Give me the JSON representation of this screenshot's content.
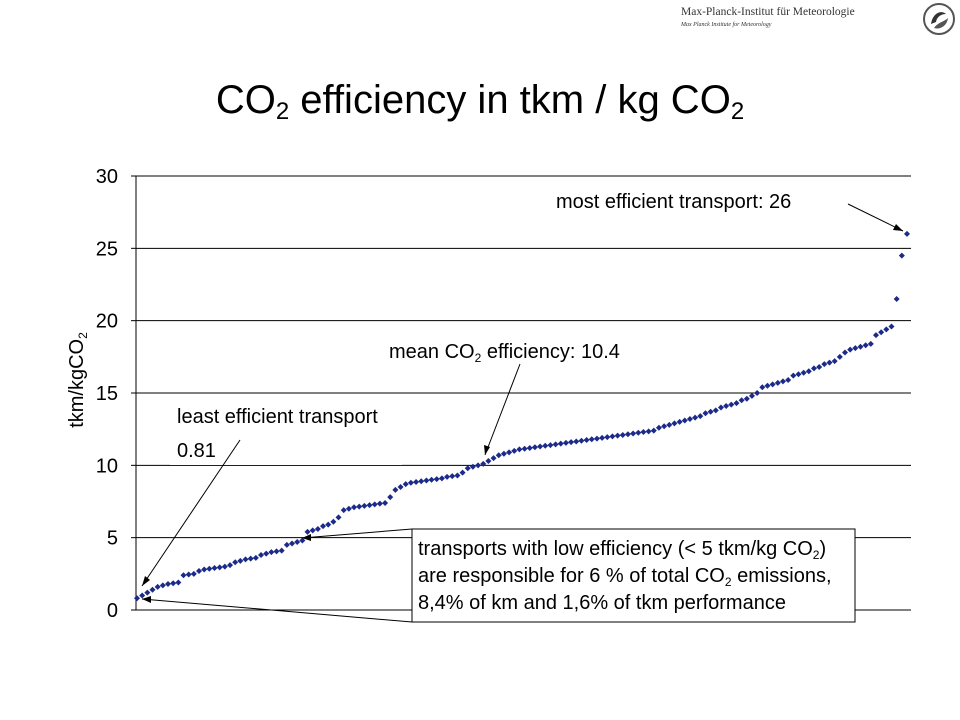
{
  "logo": {
    "line1": "Max-Planck-Institut für Meteorologie",
    "line2": "Max Planck Institute for Meteorology",
    "icon": "institute-emblem-icon"
  },
  "title": {
    "main": "CO",
    "main_sub": "2",
    "middle": " efficiency in tkm / kg CO",
    "end_sub": "2"
  },
  "chart_data": {
    "type": "scatter",
    "title": "CO2 efficiency in tkm / kg CO2",
    "xlabel": "",
    "ylabel": "tkm/kgCO2",
    "ylabel_main": "tkm/kgCO",
    "ylabel_sub": "2",
    "ylim": [
      0,
      30
    ],
    "yticks": [
      0,
      5,
      10,
      15,
      20,
      25,
      30
    ],
    "grid": "horizontal",
    "series": [
      {
        "color": "#1c2a8a",
        "marker": "diamond",
        "values": [
          0.81,
          1.0,
          1.2,
          1.4,
          1.6,
          1.7,
          1.8,
          1.85,
          1.9,
          2.4,
          2.45,
          2.5,
          2.7,
          2.8,
          2.85,
          2.9,
          2.95,
          3.0,
          3.1,
          3.3,
          3.4,
          3.5,
          3.55,
          3.6,
          3.8,
          3.9,
          4.0,
          4.05,
          4.1,
          4.5,
          4.6,
          4.7,
          4.8,
          5.4,
          5.5,
          5.6,
          5.8,
          5.9,
          6.1,
          6.4,
          6.9,
          7.0,
          7.1,
          7.15,
          7.2,
          7.25,
          7.3,
          7.35,
          7.4,
          7.8,
          8.3,
          8.5,
          8.7,
          8.8,
          8.85,
          8.9,
          8.95,
          9.0,
          9.05,
          9.1,
          9.2,
          9.25,
          9.3,
          9.5,
          9.8,
          9.9,
          10.0,
          10.1,
          10.3,
          10.5,
          10.7,
          10.8,
          10.9,
          11.0,
          11.1,
          11.15,
          11.2,
          11.25,
          11.3,
          11.35,
          11.4,
          11.45,
          11.5,
          11.55,
          11.6,
          11.65,
          11.7,
          11.75,
          11.8,
          11.85,
          11.9,
          11.95,
          12.0,
          12.05,
          12.1,
          12.15,
          12.2,
          12.25,
          12.3,
          12.35,
          12.4,
          12.6,
          12.7,
          12.8,
          12.9,
          13.0,
          13.1,
          13.2,
          13.3,
          13.4,
          13.6,
          13.7,
          13.8,
          14.0,
          14.1,
          14.2,
          14.3,
          14.5,
          14.6,
          14.8,
          15.0,
          15.4,
          15.5,
          15.6,
          15.7,
          15.8,
          15.9,
          16.2,
          16.3,
          16.4,
          16.5,
          16.7,
          16.8,
          17.0,
          17.1,
          17.2,
          17.5,
          17.8,
          18.0,
          18.1,
          18.2,
          18.3,
          18.4,
          19.0,
          19.2,
          19.4,
          19.6,
          21.5,
          24.5,
          26.0
        ]
      }
    ],
    "annotations": {
      "most": "most efficient transport: 26",
      "mean_pre": "mean CO",
      "mean_sub": "2",
      "mean_post": " efficiency: 10.4",
      "least_line1": "least efficient transport",
      "least_line2": "0.81",
      "box_line1_pre": "transports with low efficiency (< 5 tkm/kg CO",
      "box_line1_sub": "2",
      "box_line1_post": ")",
      "box_line2_pre": "are responsible for 6 % of total CO",
      "box_line2_sub": "2",
      "box_line2_post": " emissions,",
      "box_line3": "8,4% of km and 1,6% of tkm performance"
    }
  }
}
